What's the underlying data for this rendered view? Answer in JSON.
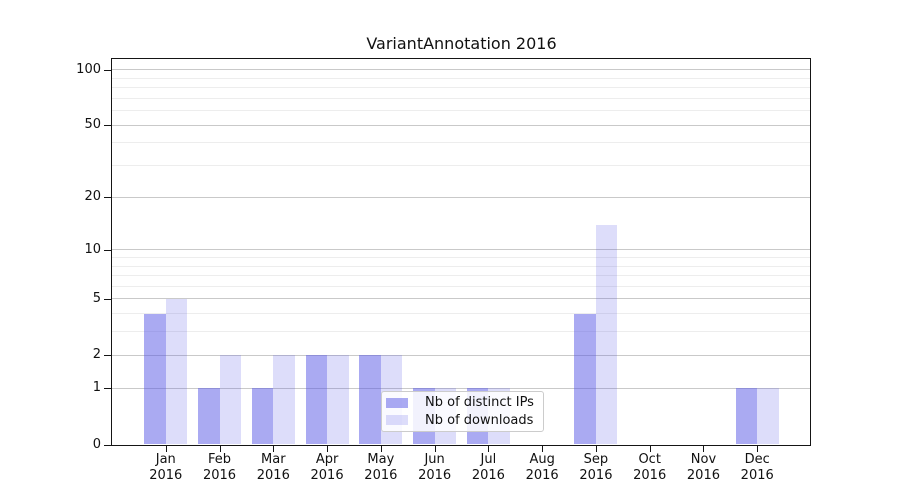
{
  "title": "VariantAnnotation 2016",
  "colors": {
    "bar_distinct_ips": "rgba(85,85,230,0.5)",
    "bar_downloads": "rgba(85,85,230,0.2)",
    "grid_major": "#c9c9c9",
    "grid_minor": "#ededed",
    "axis": "#151515"
  },
  "chart_data": {
    "type": "bar",
    "title": "VariantAnnotation 2016",
    "categories": [
      "Jan 2016",
      "Feb 2016",
      "Mar 2016",
      "Apr 2016",
      "May 2016",
      "Jun 2016",
      "Jul 2016",
      "Aug 2016",
      "Sep 2016",
      "Oct 2016",
      "Nov 2016",
      "Dec 2016"
    ],
    "series": [
      {
        "name": "Nb of distinct IPs",
        "color": "rgba(85,85,230,0.5)",
        "values": [
          4,
          1,
          1,
          2,
          2,
          1,
          1,
          0,
          4,
          0,
          0,
          1
        ]
      },
      {
        "name": "Nb of downloads",
        "color": "rgba(85,85,230,0.2)",
        "values": [
          5,
          2,
          2,
          2,
          2,
          1,
          1,
          0,
          14,
          0,
          0,
          1
        ]
      }
    ],
    "xlabel": "",
    "ylabel": "",
    "yscale": "log10(1+v)",
    "ylim": [
      0,
      115
    ],
    "yticks": [
      0,
      1,
      2,
      5,
      10,
      20,
      50,
      100
    ],
    "yticks_minor": [
      3,
      4,
      6,
      7,
      8,
      9,
      30,
      40,
      60,
      70,
      80,
      90
    ],
    "grid": true,
    "legend_position": "lower center"
  }
}
